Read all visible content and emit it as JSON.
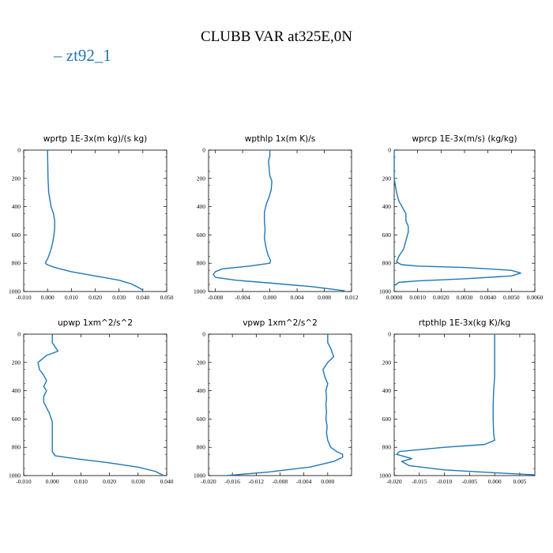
{
  "title": "CLUBB VAR at325E,0N",
  "legend": {
    "label": "zt92_1",
    "color": "#1f77b4"
  },
  "chart_data": [
    {
      "type": "line",
      "title": "wprtp  1E-3x(m kg)/(s kg)",
      "xlim": [
        -0.01,
        0.05
      ],
      "xticks": [
        "-0.010",
        "0.000",
        "0.010",
        "0.020",
        "0.030",
        "0.040",
        "0.050"
      ],
      "ylim": [
        0,
        1000
      ],
      "yticks": [
        "0",
        "200",
        "400",
        "600",
        "800",
        "1000"
      ],
      "y_inverted": true,
      "series": [
        {
          "x": [
            0.0,
            0.0001,
            0.0002,
            0.0005,
            0.0015,
            0.0025,
            0.003,
            0.003,
            0.0027,
            0.0022,
            0.0015,
            0.0007,
            0.0,
            -0.0007,
            -0.0008,
            -0.0002,
            0.003,
            0.01,
            0.02,
            0.03,
            0.035,
            0.038,
            0.04
          ],
          "y": [
            0,
            100,
            200,
            300,
            400,
            450,
            500,
            550,
            600,
            650,
            700,
            740,
            770,
            790,
            800,
            810,
            830,
            860,
            890,
            920,
            945,
            970,
            990
          ]
        }
      ]
    },
    {
      "type": "line",
      "title": "wpthlp  1x(m K)/s",
      "xlim": [
        -0.009,
        0.012
      ],
      "xticks": [
        "-0.008",
        "-0.004",
        "0.000",
        "0.004",
        "0.008",
        "0.012"
      ],
      "ylim": [
        0,
        1000
      ],
      "yticks": [
        "0",
        "200",
        "400",
        "600",
        "800",
        "1000"
      ],
      "y_inverted": true,
      "series": [
        {
          "x": [
            0.0,
            0.0,
            -0.0002,
            -0.0001,
            0.0,
            0.0003,
            0.0002,
            -0.0001,
            -0.0005,
            -0.0008,
            -0.0008,
            -0.0007,
            -0.0008,
            -0.0006,
            -0.0004,
            -0.0002,
            0.0001,
            0.0,
            -0.003,
            -0.007,
            -0.008,
            -0.0083,
            -0.008,
            -0.005,
            0.0,
            0.006,
            0.011
          ],
          "y": [
            0,
            40,
            80,
            130,
            180,
            220,
            280,
            330,
            380,
            440,
            500,
            560,
            620,
            680,
            720,
            750,
            780,
            800,
            820,
            840,
            860,
            880,
            900,
            920,
            940,
            965,
            995
          ]
        }
      ]
    },
    {
      "type": "line",
      "title": "wprcp  1E-3x(m/s) (kg/kg)",
      "xlim": [
        0,
        0.006
      ],
      "xticks": [
        "0.0000",
        "0.0010",
        "0.0020",
        "0.0030",
        "0.0040",
        "0.0050",
        "0.0060"
      ],
      "ylim": [
        0,
        1000
      ],
      "yticks": [
        "0",
        "200",
        "400",
        "600",
        "800",
        "1000"
      ],
      "y_inverted": true,
      "series": [
        {
          "x": [
            0.0,
            0.0,
            0.0,
            0.0001,
            0.0002,
            0.0004,
            0.0005,
            0.0005,
            0.0006,
            0.0006,
            0.0005,
            0.0004,
            0.0002,
            0.0001,
            0.0003,
            0.001,
            0.003,
            0.005,
            0.0054,
            0.005,
            0.003,
            0.001,
            0.0002,
            0.0,
            0.0
          ],
          "y": [
            0,
            100,
            200,
            300,
            360,
            420,
            450,
            500,
            540,
            580,
            640,
            700,
            750,
            790,
            810,
            820,
            830,
            850,
            870,
            890,
            910,
            925,
            935,
            960,
            990
          ]
        }
      ]
    },
    {
      "type": "line",
      "title": "upwp  1xm^2/s^2",
      "xlim": [
        -0.01,
        0.04
      ],
      "xticks": [
        "-0.010",
        "0.000",
        "0.010",
        "0.020",
        "0.030",
        "0.040"
      ],
      "ylim": [
        0,
        1000
      ],
      "yticks": [
        "0",
        "200",
        "400",
        "600",
        "800",
        "1000"
      ],
      "y_inverted": true,
      "series": [
        {
          "x": [
            0.0,
            0.0,
            0.001,
            0.002,
            -0.002,
            -0.005,
            -0.0045,
            -0.003,
            -0.002,
            -0.003,
            -0.002,
            -0.003,
            -0.003,
            -0.002,
            -0.001,
            0.0,
            0.0,
            0.0,
            0.0,
            0.001,
            0.008,
            0.02,
            0.03,
            0.036,
            0.039
          ],
          "y": [
            0,
            60,
            90,
            120,
            150,
            200,
            250,
            290,
            330,
            370,
            400,
            440,
            480,
            520,
            560,
            620,
            700,
            780,
            830,
            860,
            880,
            910,
            940,
            970,
            1000
          ]
        }
      ]
    },
    {
      "type": "line",
      "title": "vpwp  1xm^2/s^2",
      "xlim": [
        -0.02,
        0.004
      ],
      "xticks": [
        "-0.020",
        "-0.016",
        "-0.012",
        "-0.008",
        "-0.004",
        "0.000"
      ],
      "ylim": [
        0,
        1000
      ],
      "yticks": [
        "0",
        "200",
        "400",
        "600",
        "800",
        "1000"
      ],
      "y_inverted": true,
      "series": [
        {
          "x": [
            0.0,
            0.0,
            0.0005,
            0.001,
            0.0,
            -0.0008,
            -0.0005,
            0.0,
            -0.0003,
            -0.0002,
            -0.0003,
            -0.0002,
            -0.0003,
            -0.0001,
            -0.0002,
            0.0,
            0.0005,
            0.0015,
            0.0025,
            0.0025,
            0.001,
            -0.003,
            -0.01,
            -0.017
          ],
          "y": [
            0,
            60,
            100,
            160,
            200,
            250,
            300,
            350,
            400,
            450,
            500,
            550,
            600,
            650,
            700,
            750,
            800,
            830,
            850,
            870,
            900,
            940,
            975,
            1000
          ]
        }
      ]
    },
    {
      "type": "line",
      "title": "rtpthlp  1E-3x(kg K)/kg",
      "xlim": [
        -0.02,
        0.008
      ],
      "xticks": [
        "-0.020",
        "-0.015",
        "-0.010",
        "-0.005",
        "0.000",
        "0.005"
      ],
      "ylim": [
        0,
        1000
      ],
      "yticks": [
        "0",
        "200",
        "400",
        "600",
        "800",
        "1000"
      ],
      "y_inverted": true,
      "series": [
        {
          "x": [
            0.0,
            0.0,
            0.0,
            -0.0002,
            -0.0003,
            -0.0003,
            -0.0002,
            -0.0001,
            0.0,
            -0.002,
            -0.01,
            -0.019,
            -0.0195,
            -0.0165,
            -0.0185,
            -0.017,
            -0.01,
            0.0,
            0.008
          ],
          "y": [
            0,
            100,
            300,
            400,
            500,
            600,
            700,
            730,
            750,
            780,
            800,
            830,
            850,
            880,
            900,
            930,
            960,
            980,
            995
          ]
        }
      ]
    }
  ]
}
